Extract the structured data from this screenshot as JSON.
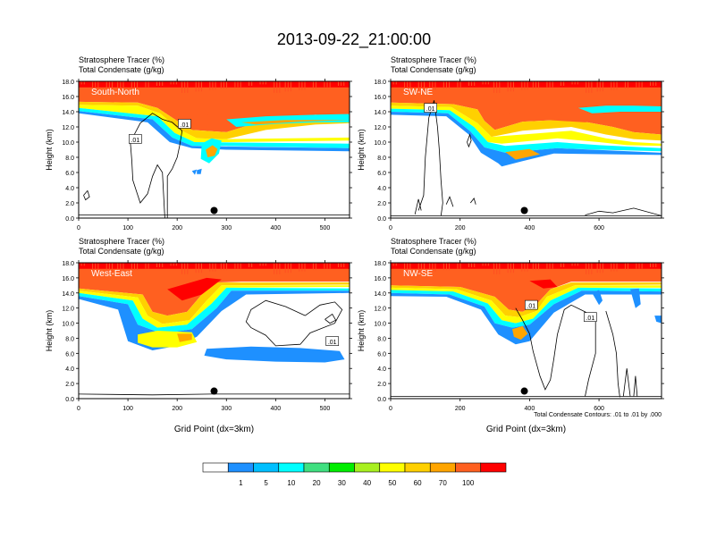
{
  "title": "2013-09-22_21:00:00",
  "colorbar": {
    "colors": [
      "#ffffff",
      "#1e90ff",
      "#00bfff",
      "#00ffff",
      "#40e080",
      "#00ee00",
      "#a8f020",
      "#ffff00",
      "#ffd000",
      "#ffa500",
      "#ff6020",
      "#ff0000"
    ],
    "labels": [
      "1",
      "5",
      "10",
      "20",
      "30",
      "40",
      "50",
      "60",
      "70",
      "100"
    ]
  },
  "chart_data": [
    {
      "type": "heatmap",
      "panel": "South-North",
      "title_lines": [
        "Stratosphere Tracer   (%)",
        "Total Condensate   (g/kg)"
      ],
      "ylabel": "Height (km)",
      "xlabel": "",
      "xlim": [
        0,
        550
      ],
      "ylim": [
        0,
        18
      ],
      "x_ticks": [
        "0",
        "100",
        "200",
        "300",
        "400",
        "500"
      ],
      "y_ticks": [
        "0.0",
        "2.0",
        "4.0",
        "6.0",
        "8.0",
        "10.0",
        "12.0",
        "14.0",
        "16.0",
        "18.0"
      ],
      "contour_labels": [
        ".01",
        ".01"
      ],
      "marker_x": 275,
      "marker_y": 1.0,
      "footnote": ""
    },
    {
      "type": "heatmap",
      "panel": "SW-NE",
      "title_lines": [
        "Stratosphere Tracer   (%)",
        "Total Condensate   (g/kg)"
      ],
      "ylabel": "Height (km)",
      "xlabel": "",
      "xlim": [
        0,
        780
      ],
      "ylim": [
        0,
        18
      ],
      "x_ticks": [
        "0",
        "200",
        "400",
        "600"
      ],
      "y_ticks": [
        "0.0",
        "2.0",
        "4.0",
        "6.0",
        "8.0",
        "10.0",
        "12.0",
        "14.0",
        "16.0",
        "18.0"
      ],
      "contour_labels": [
        ".01"
      ],
      "marker_x": 385,
      "marker_y": 1.0,
      "footnote": ""
    },
    {
      "type": "heatmap",
      "panel": "West-East",
      "title_lines": [
        "Stratosphere Tracer   (%)",
        "Total Condensate   (g/kg)"
      ],
      "ylabel": "Height (km)",
      "xlabel": "Grid Point (dx=3km)",
      "xlim": [
        0,
        550
      ],
      "ylim": [
        0,
        18
      ],
      "x_ticks": [
        "0",
        "100",
        "200",
        "300",
        "400",
        "500"
      ],
      "y_ticks": [
        "0.0",
        "2.0",
        "4.0",
        "6.0",
        "8.0",
        "10.0",
        "12.0",
        "14.0",
        "16.0",
        "18.0"
      ],
      "contour_labels": [
        ".01"
      ],
      "marker_x": 275,
      "marker_y": 1.0,
      "footnote": ""
    },
    {
      "type": "heatmap",
      "panel": "NW-SE",
      "title_lines": [
        "Stratosphere Tracer   (%)",
        "Total Condensate   (g/kg)"
      ],
      "ylabel": "Height (km)",
      "xlabel": "Grid Point (dx=3km)",
      "xlim": [
        0,
        780
      ],
      "ylim": [
        0,
        18
      ],
      "x_ticks": [
        "0",
        "200",
        "400",
        "600"
      ],
      "y_ticks": [
        "0.0",
        "2.0",
        "4.0",
        "6.0",
        "8.0",
        "10.0",
        "12.0",
        "14.0",
        "16.0",
        "18.0"
      ],
      "contour_labels": [
        ".01",
        ".01"
      ],
      "marker_x": 385,
      "marker_y": 1.0,
      "footnote": "Total Condensate Contours: .01 to .01 by .000"
    }
  ]
}
